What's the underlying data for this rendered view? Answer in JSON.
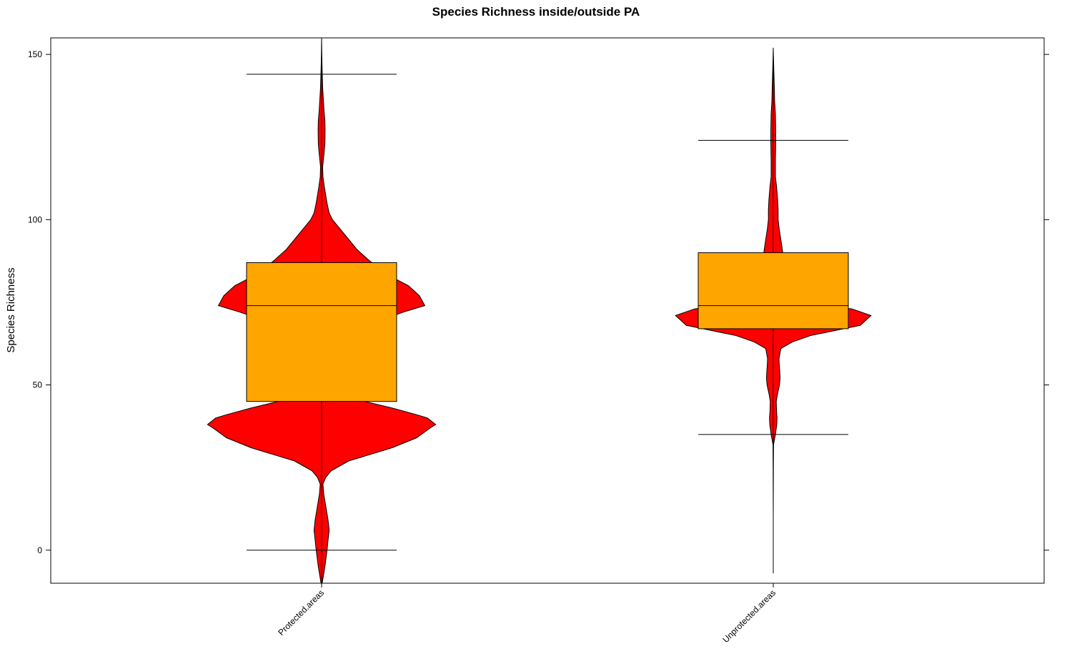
{
  "chart_data": {
    "type": "violin",
    "title": "Species Richness inside/outside PA",
    "xlabel": "",
    "ylabel": "Species Richness",
    "ylim": [
      -10,
      155
    ],
    "yticks": [
      0,
      50,
      100,
      150
    ],
    "categories": [
      "Protected.areas",
      "Unprotected.areas"
    ],
    "colors": {
      "violin": "#ff0000",
      "box": "#ffa500",
      "line": "#000000"
    },
    "grid": false,
    "legend": "none",
    "series": [
      {
        "category": "Protected.areas",
        "box": {
          "q1": 45,
          "median": 74,
          "q3": 87
        },
        "whiskers": {
          "low": 0,
          "high": 144
        },
        "range": {
          "min": -10,
          "max": 155
        },
        "density": [
          [
            -10,
            0.2
          ],
          [
            -5,
            1.2
          ],
          [
            0,
            2.0
          ],
          [
            4,
            2.5
          ],
          [
            6,
            2.8
          ],
          [
            9,
            2.4
          ],
          [
            13,
            1.6
          ],
          [
            17,
            0.8
          ],
          [
            20,
            0.5
          ],
          [
            22,
            1.5
          ],
          [
            24,
            3.5
          ],
          [
            27,
            10
          ],
          [
            29,
            18
          ],
          [
            31,
            26
          ],
          [
            34,
            35
          ],
          [
            37,
            40
          ],
          [
            38,
            42
          ],
          [
            40,
            39
          ],
          [
            41,
            35
          ],
          [
            43,
            26
          ],
          [
            45,
            16
          ],
          [
            50,
            10
          ],
          [
            55,
            8
          ],
          [
            60,
            6
          ],
          [
            65,
            7
          ],
          [
            67,
            10
          ],
          [
            70,
            23
          ],
          [
            72,
            30
          ],
          [
            74,
            38
          ],
          [
            77,
            36
          ],
          [
            80,
            32
          ],
          [
            83,
            25
          ],
          [
            86,
            20
          ],
          [
            88,
            17
          ],
          [
            91,
            13
          ],
          [
            95,
            9
          ],
          [
            98,
            6
          ],
          [
            100,
            4
          ],
          [
            102,
            2.8
          ],
          [
            105,
            2.0
          ],
          [
            108,
            1.4
          ],
          [
            110,
            1.0
          ],
          [
            113,
            0.5
          ],
          [
            116,
            0.4
          ],
          [
            120,
            0.9
          ],
          [
            123,
            1.2
          ],
          [
            127,
            1.3
          ],
          [
            130,
            1.2
          ],
          [
            133,
            0.9
          ],
          [
            137,
            0.6
          ],
          [
            140,
            0.4
          ],
          [
            145,
            0.2
          ],
          [
            150,
            0.08
          ],
          [
            155,
            0.0
          ]
        ]
      },
      {
        "category": "Unprotected.areas",
        "box": {
          "q1": 67,
          "median": 74,
          "q3": 90
        },
        "whiskers": {
          "low": 35,
          "high": 124
        },
        "range": {
          "min": -7,
          "max": 152
        },
        "density": [
          [
            -7,
            0.0
          ],
          [
            10,
            0.0
          ],
          [
            25,
            0.05
          ],
          [
            32,
            0.1
          ],
          [
            35,
            0.8
          ],
          [
            38,
            1.3
          ],
          [
            40,
            1.4
          ],
          [
            42,
            1.2
          ],
          [
            45,
            1.1
          ],
          [
            47,
            1.5
          ],
          [
            50,
            2.3
          ],
          [
            52,
            2.5
          ],
          [
            54,
            2.4
          ],
          [
            56,
            2.2
          ],
          [
            58,
            2.1
          ],
          [
            61,
            2.8
          ],
          [
            63,
            7
          ],
          [
            65,
            14
          ],
          [
            66,
            20
          ],
          [
            67,
            26
          ],
          [
            68,
            32
          ],
          [
            71,
            36
          ],
          [
            73,
            29
          ],
          [
            74,
            21
          ],
          [
            75,
            13
          ],
          [
            76,
            8
          ],
          [
            79,
            4.5
          ],
          [
            84,
            3.5
          ],
          [
            90,
            3.5
          ],
          [
            94,
            2.8
          ],
          [
            97,
            2.2
          ],
          [
            100,
            1.8
          ],
          [
            103,
            1.8
          ],
          [
            106,
            1.6
          ],
          [
            110,
            1.2
          ],
          [
            113,
            0.8
          ],
          [
            118,
            0.8
          ],
          [
            123,
            0.9
          ],
          [
            127,
            0.9
          ],
          [
            132,
            0.8
          ],
          [
            136,
            0.5
          ],
          [
            140,
            0.4
          ],
          [
            145,
            0.2
          ],
          [
            150,
            0.05
          ],
          [
            152,
            0.0
          ]
        ]
      }
    ]
  }
}
